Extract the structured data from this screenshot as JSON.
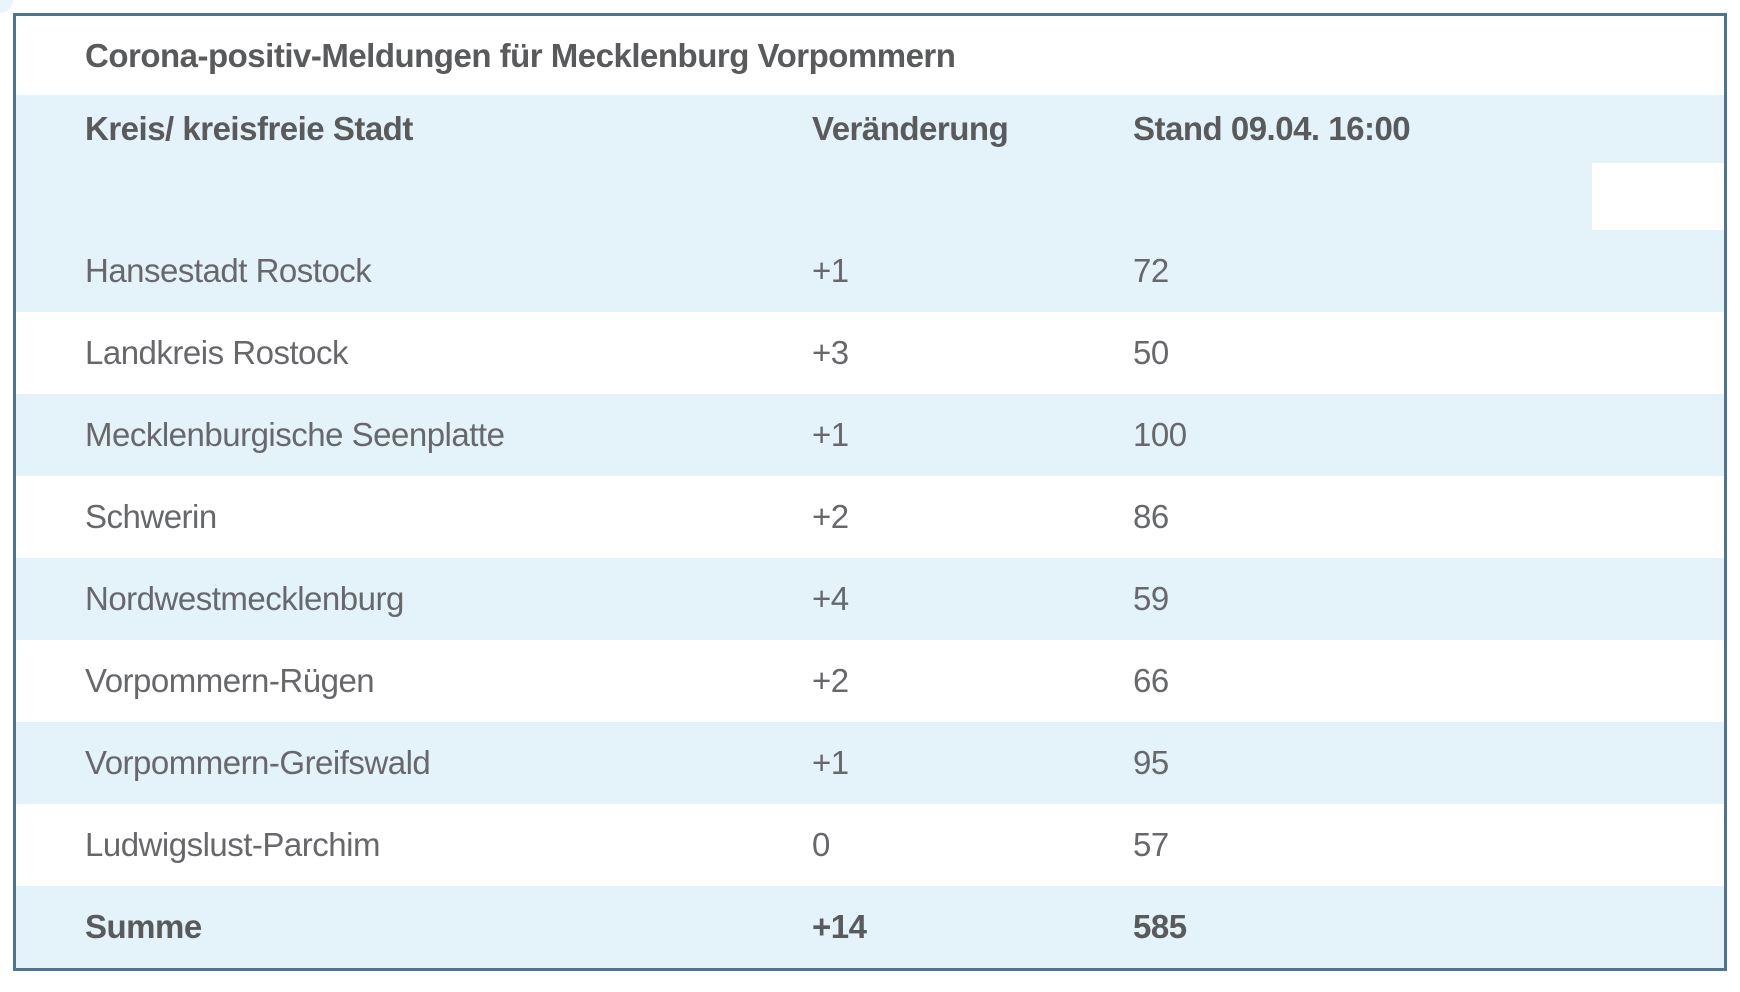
{
  "page": {
    "title": "Corona-positiv-Meldungen für Mecklenburg Vorpommern"
  },
  "table": {
    "headers": {
      "region": "Kreis/ kreisfreie Stadt",
      "change": "Veränderung",
      "stand": "Stand 09.04. 16:00"
    },
    "rows": [
      {
        "name": "Hansestadt Rostock",
        "change": "+1",
        "value": "72"
      },
      {
        "name": "Landkreis Rostock",
        "change": "+3",
        "value": "50"
      },
      {
        "name": "Mecklenburgische Seenplatte",
        "change": "+1",
        "value": "100"
      },
      {
        "name": "Schwerin",
        "change": "+2",
        "value": "86"
      },
      {
        "name": "Nordwestmecklenburg",
        "change": "+4",
        "value": "59"
      },
      {
        "name": "Vorpommern-Rügen",
        "change": "+2",
        "value": "66"
      },
      {
        "name": "Vorpommern-Greifswald",
        "change": "+1",
        "value": "95"
      },
      {
        "name": "Ludwigslust-Parchim",
        "change": "0",
        "value": "57"
      },
      {
        "name": "Summe",
        "change": "+14",
        "value": "585"
      }
    ]
  },
  "chart_data": {
    "type": "table",
    "title": "Corona-positiv-Meldungen für Mecklenburg Vorpommern",
    "columns": [
      "Kreis/ kreisfreie Stadt",
      "Veränderung",
      "Stand 09.04. 16:00"
    ],
    "categories": [
      "Hansestadt Rostock",
      "Landkreis Rostock",
      "Mecklenburgische Seenplatte",
      "Schwerin",
      "Nordwestmecklenburg",
      "Vorpommern-Rügen",
      "Vorpommern-Greifswald",
      "Ludwigslust-Parchim"
    ],
    "series": [
      {
        "name": "Veränderung",
        "values": [
          1,
          3,
          1,
          2,
          4,
          2,
          1,
          0
        ]
      },
      {
        "name": "Stand 09.04. 16:00",
        "values": [
          72,
          50,
          100,
          86,
          59,
          66,
          95,
          57
        ]
      }
    ],
    "total": {
      "name": "Summe",
      "change": 14,
      "value": 585
    }
  },
  "colors": {
    "border": "#4e7490",
    "row_blue": "#e4f2fa",
    "text_heading": "#595a5c",
    "text_body": "#67686b"
  }
}
